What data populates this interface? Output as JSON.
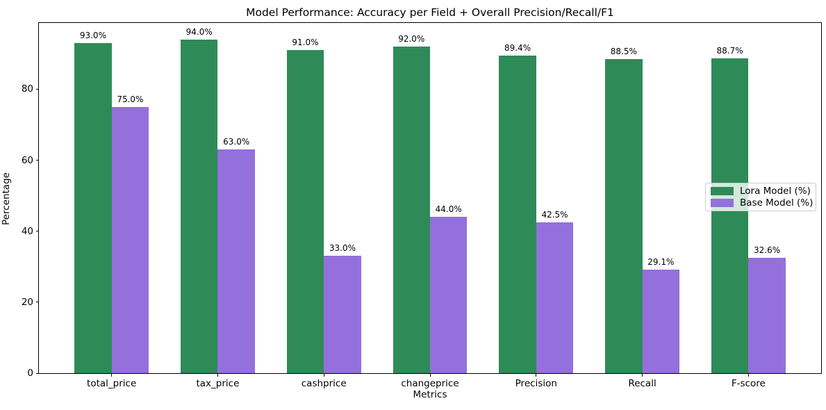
{
  "chart_data": {
    "type": "bar",
    "title": "Model Performance: Accuracy per Field + Overall Precision/Recall/F1",
    "xlabel": "Metrics",
    "ylabel": "Percentage",
    "categories": [
      "total_price",
      "tax_price",
      "cashprice",
      "changeprice",
      "Precision",
      "Recall",
      "F-score"
    ],
    "series": [
      {
        "name": "Lora Model (%)",
        "color": "#2e8b57",
        "values": [
          93.0,
          94.0,
          91.0,
          92.0,
          89.4,
          88.5,
          88.7
        ],
        "labels": [
          "93.0%",
          "94.0%",
          "91.0%",
          "92.0%",
          "89.4%",
          "88.5%",
          "88.7%"
        ]
      },
      {
        "name": "Base Model (%)",
        "color": "#9370db",
        "values": [
          75.0,
          63.0,
          33.0,
          44.0,
          42.5,
          29.1,
          32.6
        ],
        "labels": [
          "75.0%",
          "63.0%",
          "33.0%",
          "44.0%",
          "42.5%",
          "29.1%",
          "32.6%"
        ]
      }
    ],
    "yticks": [
      0,
      20,
      40,
      60,
      80
    ],
    "ytick_labels": [
      "0",
      "20",
      "40",
      "60",
      "80"
    ],
    "ylim": [
      0,
      98.7
    ],
    "xlim": [
      -0.685,
      6.685
    ],
    "bar_width": 0.35,
    "grid": false,
    "legend_position": "center right",
    "background_color": "#ffffff",
    "spine_color": "#000000"
  }
}
